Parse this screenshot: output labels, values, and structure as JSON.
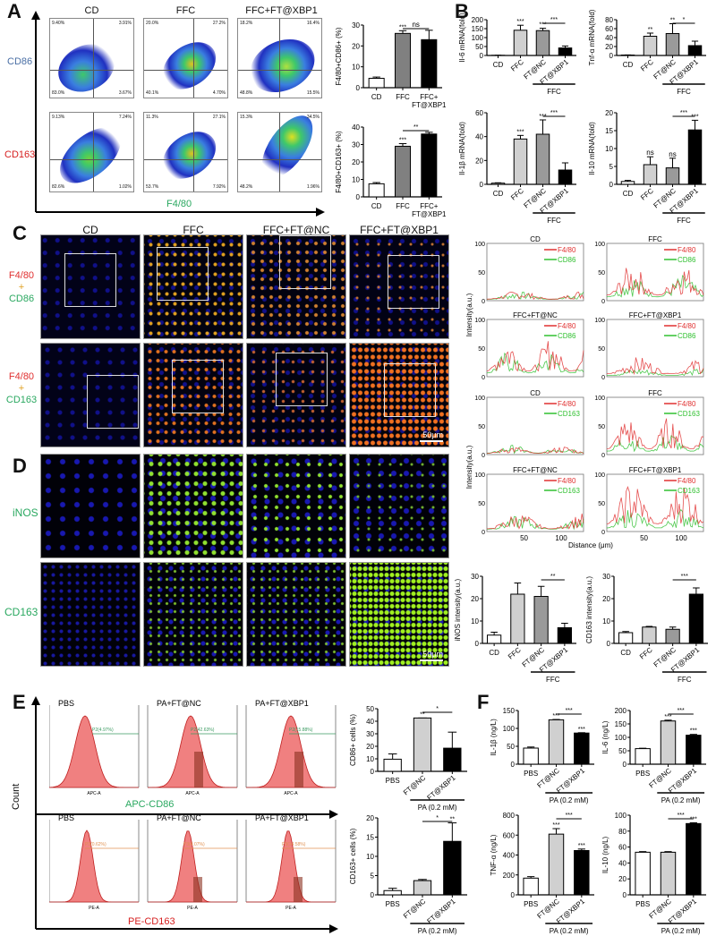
{
  "figure": {
    "panels": {
      "A": {
        "label": "A",
        "columns": [
          "CD",
          "FFC",
          "FFC+FT@XBP1"
        ],
        "rows": [
          "CD86",
          "CD163"
        ],
        "x_axis_label": "F4/80",
        "quadrants_row1": [
          {
            "q1": "9.40%",
            "q2": "3.91%",
            "q3": "3.67%",
            "q4": "83.0%"
          },
          {
            "q1": "20.0%",
            "q2": "27.2%",
            "q3": "4.70%",
            "q4": "40.1%"
          },
          {
            "q1": "18.2%",
            "q2": "16.4%",
            "q3": "15.5%",
            "q4": "48.8%"
          }
        ],
        "quadrants_row2": [
          {
            "q5": "9.13%",
            "q6": "7.24%",
            "q7": "1.02%",
            "q8": "82.6%"
          },
          {
            "q5": "11.3%",
            "q6": "27.1%",
            "q7": "7.92%",
            "q8": "53.7%"
          },
          {
            "q5": "15.3%",
            "q6": "34.5%",
            "q7": "1.96%",
            "q8": "48.2%"
          }
        ]
      },
      "B": {
        "label": "B"
      },
      "C": {
        "label": "C",
        "columns": [
          "CD",
          "FFC",
          "FFC+FT@NC",
          "FFC+FT@XBP1"
        ],
        "row1_label": [
          "F4/80",
          "+",
          "CD86"
        ],
        "row2_label": [
          "F4/80",
          "+",
          "CD163"
        ],
        "scale_bar": "50μm"
      },
      "D": {
        "label": "D",
        "rows": [
          "iNOS",
          "CD163"
        ],
        "scale_bar": "50μm"
      },
      "E": {
        "label": "E",
        "y_axis_label": "Count",
        "row1_axis": "APC-CD86",
        "row2_axis": "PE-CD163",
        "columns": [
          "PBS",
          "PA+FT@NC",
          "PA+FT@XBP1"
        ],
        "gates_row1": [
          "P2(4.97%)",
          "P2(42.63%)",
          "P2(15.88%)"
        ],
        "gates_row2": [
          "P3(0.62%)",
          "P3(4.07%)",
          "P3(14.58%)"
        ],
        "small_x_label_row1": "APC-A",
        "small_x_label_row2": "PE-A",
        "small_y_label": "Count"
      },
      "F": {
        "label": "F"
      }
    }
  },
  "chart_data": [
    {
      "id": "A1",
      "type": "bar",
      "ylabel": "F4/80+CD86+ (%)",
      "categories": [
        "CD",
        "FFC",
        "FFC+FT@XBP1"
      ],
      "values": [
        4.5,
        26,
        23
      ],
      "errors": [
        0.6,
        1.3,
        4.5
      ],
      "ylim": [
        0,
        30
      ],
      "yticks": [
        0,
        10,
        20,
        30
      ],
      "colors": [
        "#ffffff",
        "#808080",
        "#000000"
      ],
      "annotations": {
        "bar_stars": [
          "",
          "***",
          ""
        ],
        "bracket": {
          "from": 1,
          "to": 2,
          "label": "ns"
        }
      }
    },
    {
      "id": "A2",
      "type": "bar",
      "ylabel": "F4/80+CD163+ (%)",
      "categories": [
        "CD",
        "FFC",
        "FFC+FT@XBP1"
      ],
      "values": [
        7.5,
        29,
        36
      ],
      "errors": [
        0.7,
        1.5,
        1
      ],
      "ylim": [
        0,
        40
      ],
      "yticks": [
        0,
        10,
        20,
        30,
        40
      ],
      "colors": [
        "#ffffff",
        "#808080",
        "#000000"
      ],
      "annotations": {
        "bar_stars": [
          "",
          "***",
          ""
        ],
        "bracket": {
          "from": 1,
          "to": 2,
          "label": "**"
        }
      }
    },
    {
      "id": "B1",
      "type": "bar",
      "ylabel": "Il-6 mRNA(fold)",
      "categories": [
        "CD",
        "FFC",
        "FT@NC",
        "FT@XBP1"
      ],
      "group_label": "FFC",
      "values": [
        1,
        141,
        139,
        42
      ],
      "errors": [
        0.5,
        28,
        13,
        11
      ],
      "ylim": [
        0,
        200
      ],
      "yticks": [
        0,
        50,
        100,
        150,
        200
      ],
      "colors": [
        "#ffffff",
        "#d0d0d0",
        "#9a9a9a",
        "#000000"
      ],
      "annotations": {
        "bar_stars": [
          "",
          "***",
          "***",
          ""
        ],
        "bracket": {
          "from": 2,
          "to": 3,
          "label": "***"
        }
      }
    },
    {
      "id": "B2",
      "type": "bar",
      "ylabel": "Tnf-α mRNA(fold)",
      "categories": [
        "CD",
        "FFC",
        "FT@NC",
        "FT@XBP1"
      ],
      "group_label": "FFC",
      "values": [
        1,
        43,
        49,
        22
      ],
      "errors": [
        0.3,
        7,
        22,
        10
      ],
      "ylim": [
        0,
        80
      ],
      "yticks": [
        0,
        20,
        40,
        60,
        80
      ],
      "colors": [
        "#ffffff",
        "#d0d0d0",
        "#9a9a9a",
        "#000000"
      ],
      "annotations": {
        "bar_stars": [
          "",
          "**",
          "**",
          ""
        ],
        "bracket": {
          "from": 2,
          "to": 3,
          "label": "*"
        }
      }
    },
    {
      "id": "B3",
      "type": "bar",
      "ylabel": "Il-1β mRNA(fold)",
      "categories": [
        "CD",
        "FFC",
        "FT@NC",
        "FT@XBP1"
      ],
      "group_label": "FFC",
      "values": [
        1,
        38,
        42,
        12
      ],
      "errors": [
        0.3,
        3,
        12,
        6
      ],
      "ylim": [
        0,
        60
      ],
      "yticks": [
        0,
        20,
        40,
        60
      ],
      "colors": [
        "#ffffff",
        "#d0d0d0",
        "#9a9a9a",
        "#000000"
      ],
      "annotations": {
        "bar_stars": [
          "",
          "***",
          "***",
          ""
        ],
        "bracket": {
          "from": 2,
          "to": 3,
          "label": "***"
        }
      }
    },
    {
      "id": "B4",
      "type": "bar",
      "ylabel": "Il-10 mRNA(fold)",
      "categories": [
        "CD",
        "FFC",
        "FT@NC",
        "FT@XBP1"
      ],
      "group_label": "FFC",
      "values": [
        0.8,
        5.5,
        4.6,
        15.2
      ],
      "errors": [
        0.3,
        2.2,
        2.7,
        2.7
      ],
      "ylim": [
        0,
        20
      ],
      "yticks": [
        0,
        5,
        10,
        15,
        20
      ],
      "colors": [
        "#ffffff",
        "#d0d0d0",
        "#9a9a9a",
        "#000000"
      ],
      "annotations": {
        "bar_stars": [
          "",
          "ns",
          "ns",
          "***"
        ],
        "bracket": {
          "from": 2,
          "to": 3,
          "label": "***"
        }
      }
    },
    {
      "id": "C_lines",
      "type": "line",
      "ylabel": "Intensity(a.u.)",
      "xlabel": "Distance (μm)",
      "ylim": [
        0,
        100
      ],
      "yticks": [
        0,
        50,
        100
      ],
      "xticks": [
        50,
        100
      ],
      "xlim": [
        0,
        130
      ],
      "plots": [
        {
          "title": "CD",
          "legend": [
            "F4/80",
            "CD86"
          ],
          "peak": [
            18,
            16
          ]
        },
        {
          "title": "FFC",
          "legend": [
            "F4/80",
            "CD86"
          ],
          "peak": [
            65,
            45
          ]
        },
        {
          "title": "FFC+FT@NC",
          "legend": [
            "F4/80",
            "CD86"
          ],
          "peak": [
            68,
            45
          ]
        },
        {
          "title": "FFC+FT@XBP1",
          "legend": [
            "F4/80",
            "CD86"
          ],
          "peak": [
            35,
            15
          ]
        },
        {
          "title": "CD",
          "legend": [
            "F4/80",
            "CD163"
          ],
          "peak": [
            15,
            17
          ]
        },
        {
          "title": "FFC",
          "legend": [
            "F4/80",
            "CD163"
          ],
          "peak": [
            68,
            40
          ]
        },
        {
          "title": "FFC+FT@NC",
          "legend": [
            "F4/80",
            "CD163"
          ],
          "peak": [
            32,
            28
          ]
        },
        {
          "title": "FFC+FT@XBP1",
          "legend": [
            "F4/80",
            "CD163"
          ],
          "peak": [
            90,
            42
          ]
        }
      ],
      "series_colors": {
        "F4/80": "#e03030",
        "CD86": "#30c030",
        "CD163": "#30c030"
      }
    },
    {
      "id": "D1",
      "type": "bar",
      "ylabel": "iNOS intensity(a.u.)",
      "categories": [
        "CD",
        "FFC",
        "FT@NC",
        "FT@XBP1"
      ],
      "group_label": "FFC",
      "values": [
        3.7,
        22,
        21,
        7
      ],
      "errors": [
        1.3,
        5,
        4.5,
        2
      ],
      "ylim": [
        0,
        30
      ],
      "yticks": [
        0,
        10,
        20,
        30
      ],
      "colors": [
        "#ffffff",
        "#d0d0d0",
        "#9a9a9a",
        "#000000"
      ],
      "annotations": {
        "bar_stars": [
          "",
          "",
          "",
          ""
        ],
        "bracket": {
          "from": 2,
          "to": 3,
          "label": "**"
        }
      }
    },
    {
      "id": "D2",
      "type": "bar",
      "ylabel": "CD163 intensity(a.u.)",
      "categories": [
        "CD",
        "FFC",
        "FT@NC",
        "FT@XBP1"
      ],
      "group_label": "FFC",
      "values": [
        4.8,
        7.3,
        6.3,
        22
      ],
      "errors": [
        0.5,
        0.3,
        1,
        2.8
      ],
      "ylim": [
        0,
        30
      ],
      "yticks": [
        0,
        10,
        20,
        30
      ],
      "colors": [
        "#ffffff",
        "#d0d0d0",
        "#9a9a9a",
        "#000000"
      ],
      "annotations": {
        "bar_stars": [
          "",
          "",
          "",
          ""
        ],
        "bracket": {
          "from": 2,
          "to": 3,
          "label": "***"
        }
      }
    },
    {
      "id": "E1",
      "type": "bar",
      "ylabel": "CD86+ cells (%)",
      "categories": [
        "PBS",
        "FT@NC",
        "FT@XBP1"
      ],
      "group_label": "PA (0.2 mM)",
      "values": [
        9.7,
        42.6,
        18.5
      ],
      "errors": [
        4.2,
        0,
        12.8
      ],
      "ylim": [
        0,
        50
      ],
      "yticks": [
        0,
        10,
        20,
        30,
        40,
        50
      ],
      "colors": [
        "#ffffff",
        "#d0d0d0",
        "#000000"
      ],
      "annotations": {
        "bar_stars": [
          "",
          "**",
          ""
        ],
        "bracket": {
          "from": 1,
          "to": 2,
          "label": "*"
        }
      }
    },
    {
      "id": "E2",
      "type": "bar",
      "ylabel": "CD163+ cells (%)",
      "categories": [
        "PBS",
        "FT@NC",
        "FT@XBP1"
      ],
      "group_label": "PA (0.2 mM)",
      "values": [
        1.1,
        3.7,
        13.9
      ],
      "errors": [
        0.6,
        0.3,
        4.8
      ],
      "ylim": [
        0,
        20
      ],
      "yticks": [
        0,
        5,
        10,
        15,
        20
      ],
      "colors": [
        "#ffffff",
        "#d0d0d0",
        "#000000"
      ],
      "annotations": {
        "bar_stars": [
          "",
          "",
          "**"
        ],
        "bracket": {
          "from": 1,
          "to": 2,
          "label": "*"
        }
      }
    },
    {
      "id": "F1",
      "type": "bar",
      "ylabel": "IL-1β (ng/L)",
      "categories": [
        "PBS",
        "FT@NC",
        "FT@XBP1"
      ],
      "group_label": "PA (0.2 mM)",
      "values": [
        45,
        124,
        87
      ],
      "errors": [
        3,
        1,
        1
      ],
      "ylim": [
        0,
        150
      ],
      "yticks": [
        0,
        50,
        100,
        150
      ],
      "colors": [
        "#ffffff",
        "#d0d0d0",
        "#000000"
      ],
      "annotations": {
        "bar_stars": [
          "",
          "***",
          "***"
        ],
        "bracket": {
          "from": 1,
          "to": 2,
          "label": "***"
        }
      }
    },
    {
      "id": "F2",
      "type": "bar",
      "ylabel": "IL-6 (ng/L)",
      "categories": [
        "PBS",
        "FT@NC",
        "FT@XBP1"
      ],
      "group_label": "PA (0.2 mM)",
      "values": [
        58,
        161,
        108
      ],
      "errors": [
        1.5,
        3,
        3
      ],
      "ylim": [
        0,
        200
      ],
      "yticks": [
        0,
        50,
        100,
        150,
        200
      ],
      "colors": [
        "#ffffff",
        "#d0d0d0",
        "#000000"
      ],
      "annotations": {
        "bar_stars": [
          "",
          "***",
          "***"
        ],
        "bracket": {
          "from": 1,
          "to": 2,
          "label": "***"
        }
      }
    },
    {
      "id": "F3",
      "type": "bar",
      "ylabel": "TNF-α (ng/L)",
      "categories": [
        "PBS",
        "FT@NC",
        "FT@XBP1"
      ],
      "group_label": "PA (0.2 mM)",
      "values": [
        168,
        610,
        445
      ],
      "errors": [
        15,
        55,
        15
      ],
      "ylim": [
        0,
        800
      ],
      "yticks": [
        0,
        200,
        400,
        600,
        800
      ],
      "colors": [
        "#ffffff",
        "#d0d0d0",
        "#000000"
      ],
      "annotations": {
        "bar_stars": [
          "",
          "***",
          "***"
        ],
        "bracket": {
          "from": 1,
          "to": 2,
          "label": "***"
        }
      }
    },
    {
      "id": "F4",
      "type": "bar",
      "ylabel": "IL-10 (ng/L)",
      "categories": [
        "PBS",
        "FT@NC",
        "FT@XBP1"
      ],
      "group_label": "PA (0.2 mM)",
      "values": [
        53.5,
        53.5,
        89.5
      ],
      "errors": [
        0.8,
        0.8,
        1
      ],
      "ylim": [
        0,
        100
      ],
      "yticks": [
        0,
        20,
        40,
        60,
        80,
        100
      ],
      "colors": [
        "#ffffff",
        "#d0d0d0",
        "#000000"
      ],
      "annotations": {
        "bar_stars": [
          "",
          "",
          "***"
        ],
        "bracket": {
          "from": 1,
          "to": 2,
          "label": "***"
        }
      }
    }
  ]
}
